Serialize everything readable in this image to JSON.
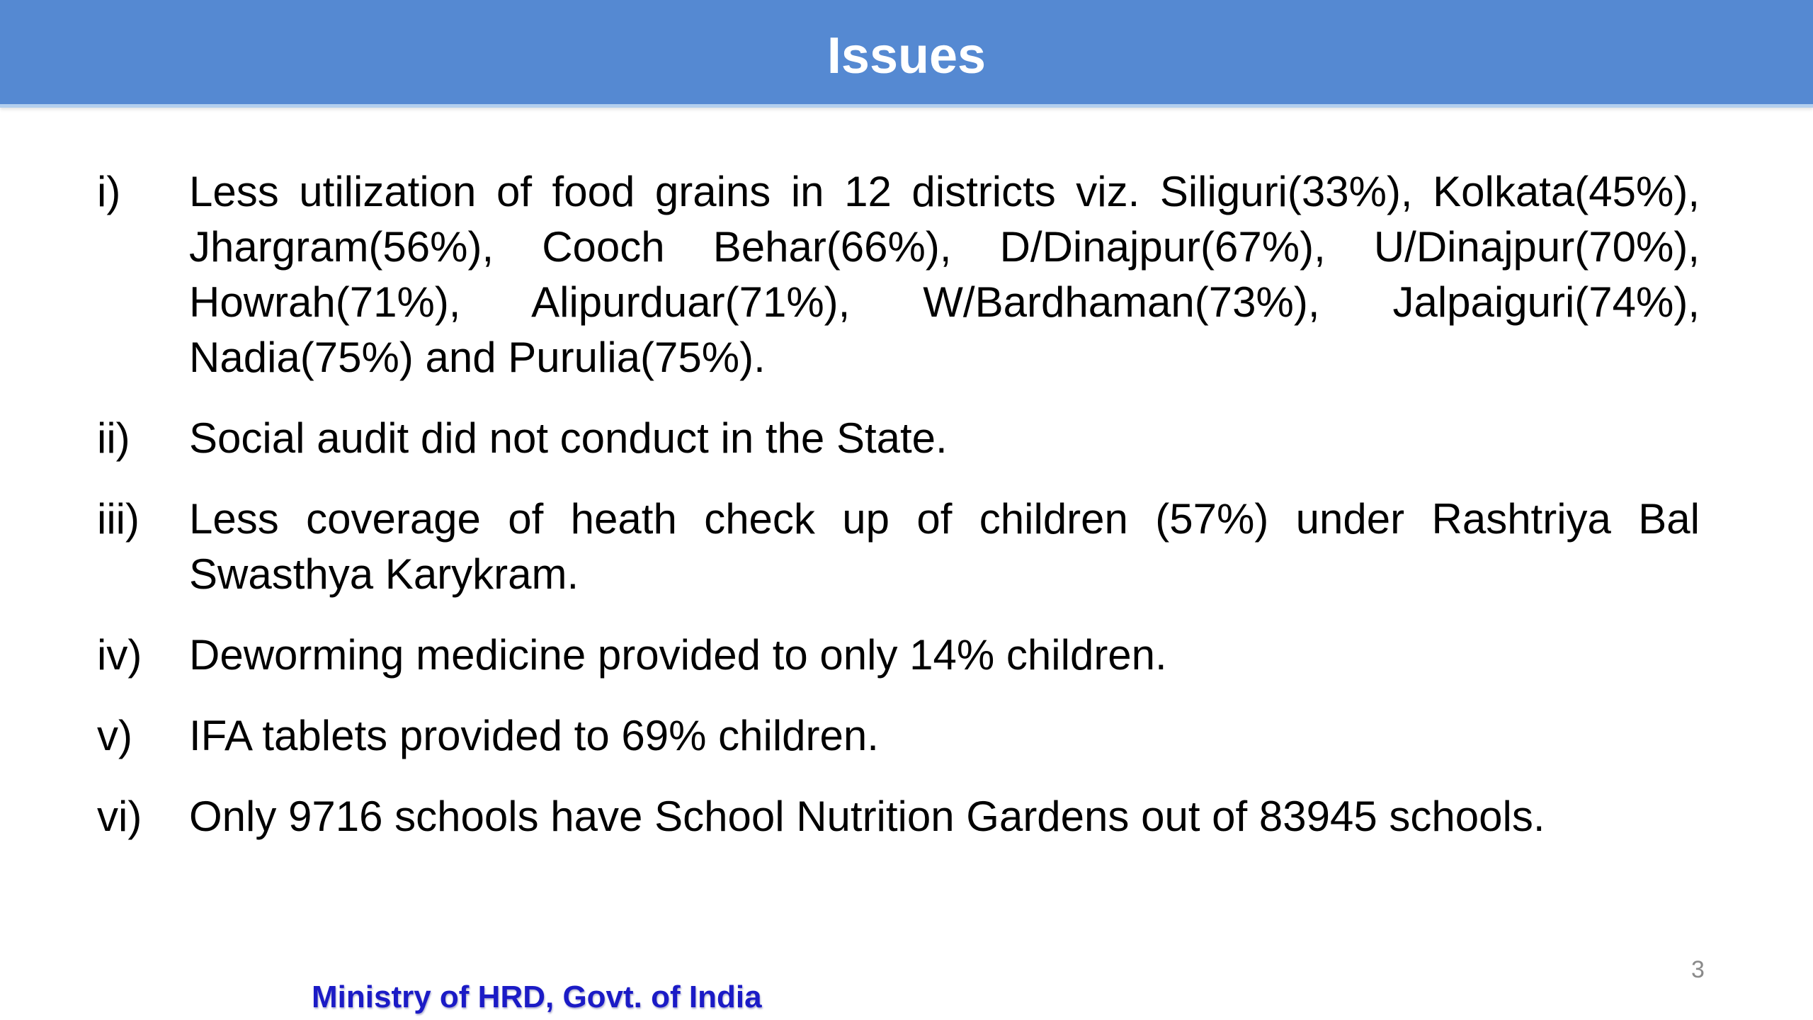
{
  "title": "Issues",
  "issues": [
    {
      "marker": "i)",
      "text": "Less utilization of food grains in 12 districts viz. Siliguri(33%), Kolkata(45%), Jhargram(56%), Cooch Behar(66%), D/Dinajpur(67%), U/Dinajpur(70%), Howrah(71%), Alipurduar(71%), W/Bardhaman(73%), Jalpaiguri(74%), Nadia(75%) and Purulia(75%)."
    },
    {
      "marker": "ii)",
      "text": "Social audit did not conduct in the State."
    },
    {
      "marker": "iii)",
      "text": "Less coverage of heath check up of children (57%) under Rashtriya Bal Swasthya Karykram."
    },
    {
      "marker": "iv)",
      "text": "Deworming medicine provided to only 14% children."
    },
    {
      "marker": "v)",
      "text": "IFA tablets provided to 69% children."
    },
    {
      "marker": "vi)",
      "text": "Only 9716 schools have School Nutrition Gardens out of 83945 schools."
    }
  ],
  "footer": {
    "label": "Ministry of HRD, Govt. of India"
  },
  "page_number": "3",
  "colors": {
    "header-bg": "#5589D2",
    "header-border": "#B3CFEE",
    "title-text": "#FFFFFF",
    "body-text": "#000000",
    "footer-text": "#1B1BC6",
    "page-number": "#8A8A8A",
    "slide-bg": "#FFFFFF"
  }
}
